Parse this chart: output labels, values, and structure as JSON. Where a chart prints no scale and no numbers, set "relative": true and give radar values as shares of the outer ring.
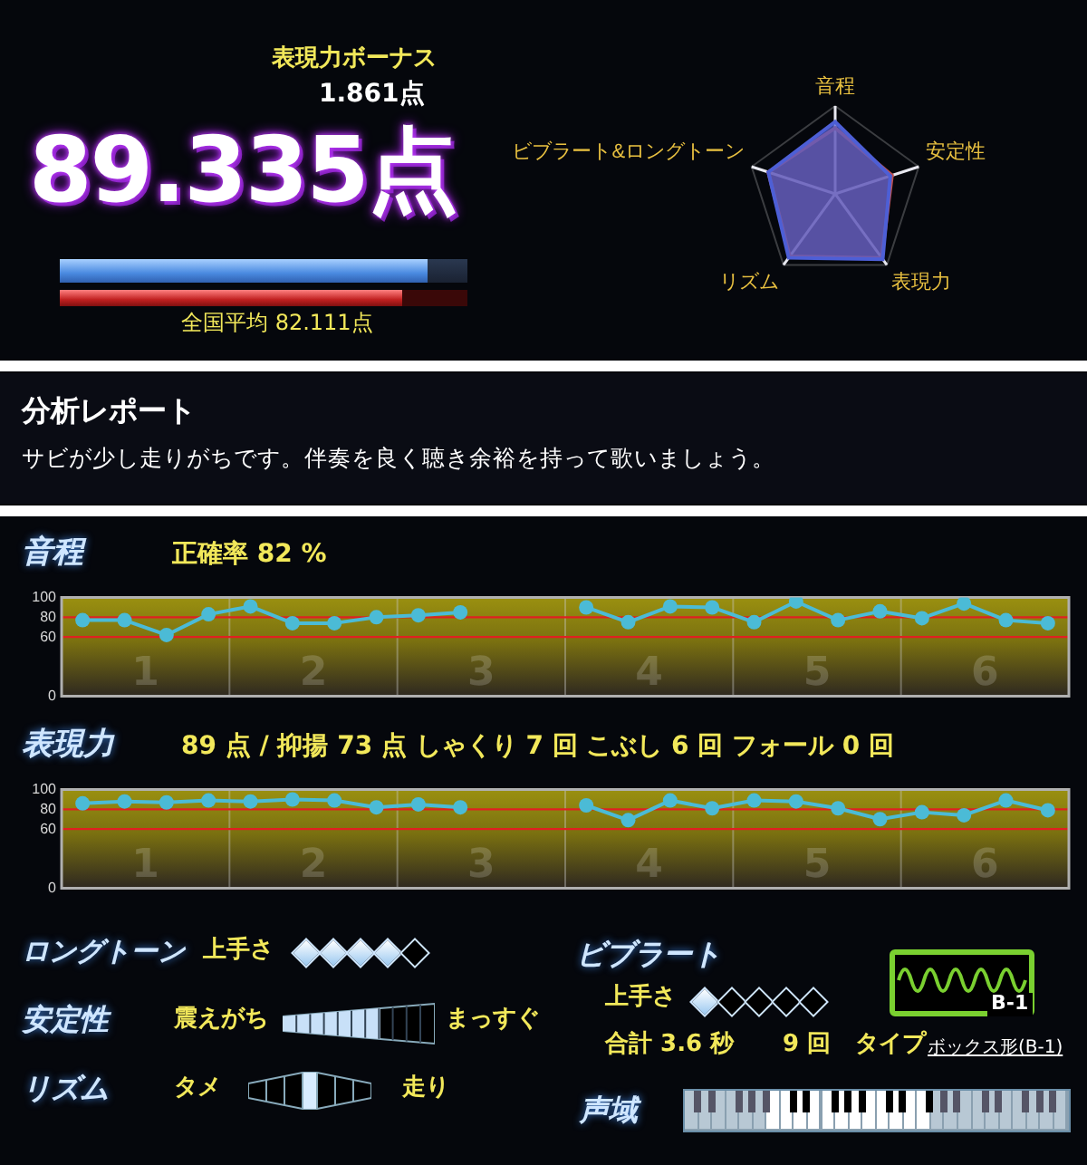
{
  "chart_data": [
    {
      "type": "other",
      "title": "89.335点",
      "annotations": [
        "表現力ボーナス",
        "1.861点",
        "全国平均 82.111点"
      ]
    },
    {
      "type": "radar",
      "categories": [
        "音程",
        "安定性",
        "表現力",
        "リズム",
        "ビブラート&ロングトーン"
      ],
      "relative": true,
      "series": [
        {
          "color": "#c0504d",
          "values": [
            0.75,
            0.68,
            0.9,
            0.88,
            0.8
          ]
        },
        {
          "color": "#4d5fd6",
          "values": [
            0.82,
            0.66,
            0.92,
            0.9,
            0.8
          ]
        }
      ]
    },
    {
      "type": "other",
      "title": "分析レポート",
      "annotations": [
        "サビが少し走りがちです。伴奏を良く聴き余裕を持って歌いましょう。"
      ]
    },
    {
      "type": "line",
      "title": "音程",
      "subtitle": "正確率 82 %",
      "categories": [
        null,
        null,
        null,
        null,
        null,
        null,
        null,
        null,
        null,
        null,
        null,
        null,
        null,
        null,
        null,
        null,
        null,
        null,
        null,
        null,
        null,
        null,
        null,
        null
      ],
      "values": [
        77,
        77,
        62,
        83,
        91,
        74,
        74,
        80,
        82,
        85,
        null,
        null,
        90,
        75,
        91,
        90,
        75,
        96,
        77,
        86,
        79,
        94,
        77,
        74
      ],
      "color": "#4bbbd6",
      "ylim": [
        0,
        100
      ],
      "yticks": [
        0,
        60,
        80,
        100
      ],
      "tick_labels": "y",
      "marker": "circle",
      "ref_lines": [
        {
          "axis": "y",
          "value": 60,
          "color": "#e02020"
        },
        {
          "axis": "y",
          "value": 80,
          "color": "#e02020"
        }
      ],
      "annotations": [
        "1",
        "2",
        "3",
        "4",
        "5",
        "6"
      ]
    },
    {
      "type": "line",
      "title": "表現力",
      "subtitle": "89 点 / 抑揚 73 点 しゃくり 7 回 こぶし 6 回 フォール 0 回",
      "categories": [
        null,
        null,
        null,
        null,
        null,
        null,
        null,
        null,
        null,
        null,
        null,
        null,
        null,
        null,
        null,
        null,
        null,
        null,
        null,
        null,
        null,
        null,
        null,
        null
      ],
      "values": [
        86,
        88,
        87,
        89,
        88,
        90,
        89,
        82,
        85,
        82,
        null,
        null,
        84,
        69,
        89,
        81,
        89,
        88,
        81,
        70,
        77,
        74,
        89,
        79
      ],
      "color": "#4bbbd6",
      "ylim": [
        0,
        100
      ],
      "yticks": [
        0,
        60,
        80,
        100
      ],
      "tick_labels": "y",
      "marker": "circle",
      "ref_lines": [
        {
          "axis": "y",
          "value": 60,
          "color": "#e02020"
        },
        {
          "axis": "y",
          "value": 80,
          "color": "#e02020"
        }
      ],
      "annotations": [
        "1",
        "2",
        "3",
        "4",
        "5",
        "6"
      ]
    },
    {
      "type": "other",
      "annotations": [
        "ロングトーン",
        "上手さ",
        "安定性",
        "震えがち",
        "まっすぐ",
        "リズム",
        "タメ",
        "走り",
        "ビブラート",
        "上手さ",
        "合計 3.6 秒",
        "9 回",
        "タイプ",
        "ボックス形(B-1)",
        "B-1",
        "声域"
      ]
    }
  ]
}
